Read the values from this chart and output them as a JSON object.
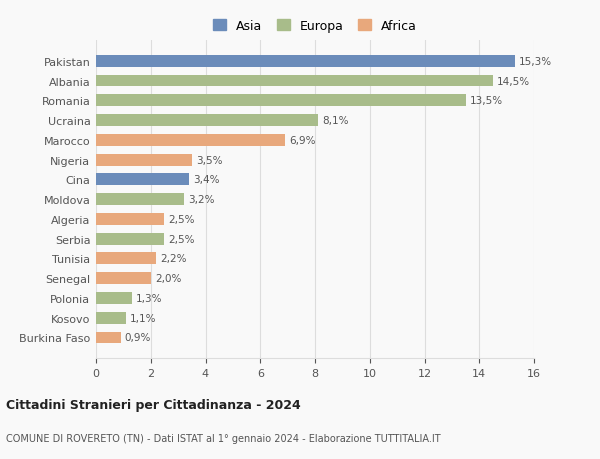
{
  "countries": [
    "Pakistan",
    "Albania",
    "Romania",
    "Ucraina",
    "Marocco",
    "Nigeria",
    "Cina",
    "Moldova",
    "Algeria",
    "Serbia",
    "Tunisia",
    "Senegal",
    "Polonia",
    "Kosovo",
    "Burkina Faso"
  ],
  "values": [
    15.3,
    14.5,
    13.5,
    8.1,
    6.9,
    3.5,
    3.4,
    3.2,
    2.5,
    2.5,
    2.2,
    2.0,
    1.3,
    1.1,
    0.9
  ],
  "labels": [
    "15,3%",
    "14,5%",
    "13,5%",
    "8,1%",
    "6,9%",
    "3,5%",
    "3,4%",
    "3,2%",
    "2,5%",
    "2,5%",
    "2,2%",
    "2,0%",
    "1,3%",
    "1,1%",
    "0,9%"
  ],
  "continents": [
    "Asia",
    "Europa",
    "Europa",
    "Europa",
    "Africa",
    "Africa",
    "Asia",
    "Europa",
    "Africa",
    "Europa",
    "Africa",
    "Africa",
    "Europa",
    "Europa",
    "Africa"
  ],
  "colors": {
    "Asia": "#6b8cba",
    "Europa": "#a8bc8a",
    "Africa": "#e8a87c"
  },
  "title": "Cittadini Stranieri per Cittadinanza - 2024",
  "subtitle": "COMUNE DI ROVERETO (TN) - Dati ISTAT al 1° gennaio 2024 - Elaborazione TUTTITALIA.IT",
  "xlim": [
    0,
    16
  ],
  "xticks": [
    0,
    2,
    4,
    6,
    8,
    10,
    12,
    14,
    16
  ],
  "background_color": "#f9f9f9",
  "grid_color": "#dddddd",
  "bar_height": 0.6
}
